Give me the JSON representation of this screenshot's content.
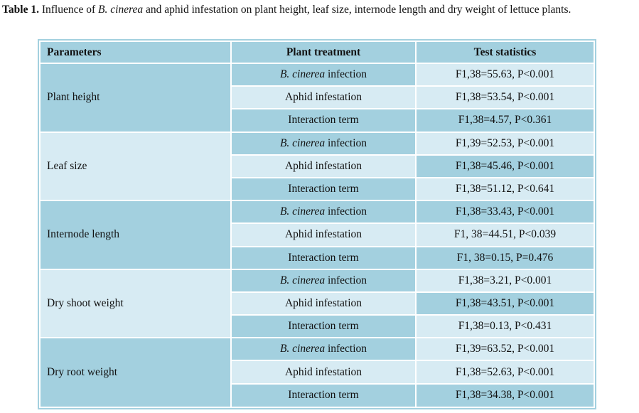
{
  "caption": {
    "label": "Table 1.",
    "part1": " Influence of ",
    "species": "B. cinerea",
    "part2": " and aphid infestation on plant height, leaf size, internode length and dry weight of lettuce plants."
  },
  "headers": {
    "parameters": "Parameters",
    "treatment": "Plant treatment",
    "statistics": "Test statistics"
  },
  "treatment_labels": {
    "infection_species": "B. cinerea",
    "infection_suffix": " infection",
    "aphid": "Aphid infestation",
    "interaction": "Interaction term"
  },
  "groups": [
    {
      "parameter": "Plant height",
      "stats": [
        "F1,38=55.63, P<0.001",
        "F1,38=53.54, P<0.001",
        "F1,38=4.57, P<0.361"
      ]
    },
    {
      "parameter": "Leaf size",
      "stats": [
        "F1,39=52.53, P<0.001",
        "F1,38=45.46, P<0.001",
        "F1,38=51.12, P<0.641"
      ]
    },
    {
      "parameter": "Internode length",
      "stats": [
        "F1,38=33.43, P<0.001",
        "F1, 38=44.51, P<0.039",
        "F1, 38=0.15, P=0.476"
      ]
    },
    {
      "parameter": "Dry shoot weight",
      "stats": [
        "F1,38=3.21, P<0.001",
        "F1,38=43.51, P<0.001",
        "F1,38=0.13, P<0.431"
      ]
    },
    {
      "parameter": "Dry root weight",
      "stats": [
        "F1,39=63.52, P<0.001",
        "F1,38=52.63, P<0.001",
        "F1,38=34.38, P<0.001"
      ]
    }
  ]
}
